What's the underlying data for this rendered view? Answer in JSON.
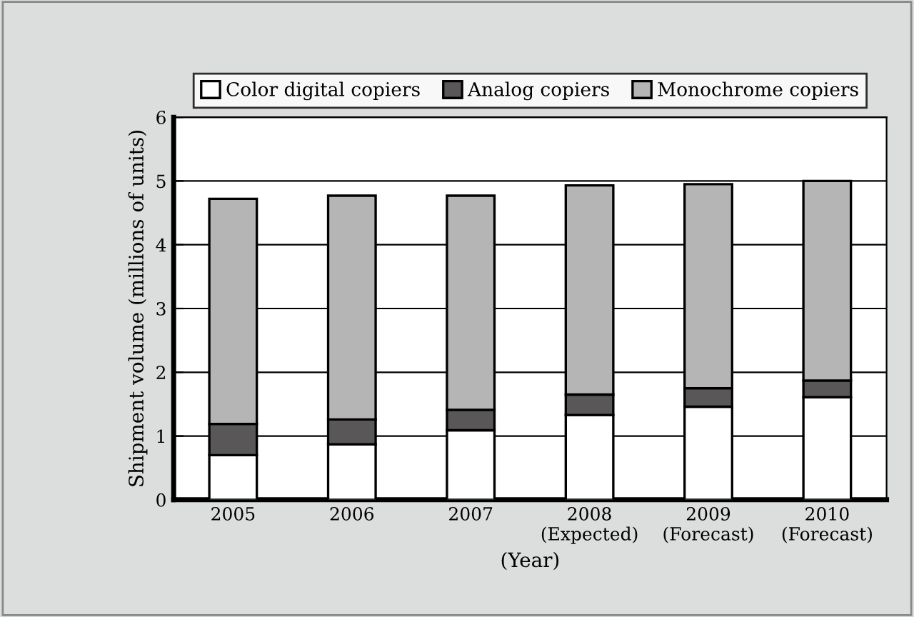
{
  "chart_data": {
    "type": "bar",
    "stacked": true,
    "ylabel": "Shipment volume (millions of units)",
    "xlabel": "(Year)",
    "categories": [
      "2005",
      "2006",
      "2007",
      "2008\n(Expected)",
      "2009\n(Forecast)",
      "2010\n(Forecast)"
    ],
    "series": [
      {
        "name": "Color digital copiers",
        "color": "#ffffff",
        "values": [
          0.7,
          0.87,
          1.09,
          1.33,
          1.46,
          1.61
        ]
      },
      {
        "name": "Analog copiers",
        "color": "#595757",
        "values": [
          0.49,
          0.39,
          0.32,
          0.32,
          0.29,
          0.26
        ]
      },
      {
        "name": "Monochrome copiers",
        "color": "#b5b5b5",
        "values": [
          3.53,
          3.51,
          3.36,
          3.28,
          3.2,
          3.13
        ]
      }
    ],
    "ylim": [
      0,
      6
    ],
    "yticks": [
      0,
      1,
      2,
      3,
      4,
      5,
      6
    ],
    "grid": "y",
    "legend": "top"
  }
}
